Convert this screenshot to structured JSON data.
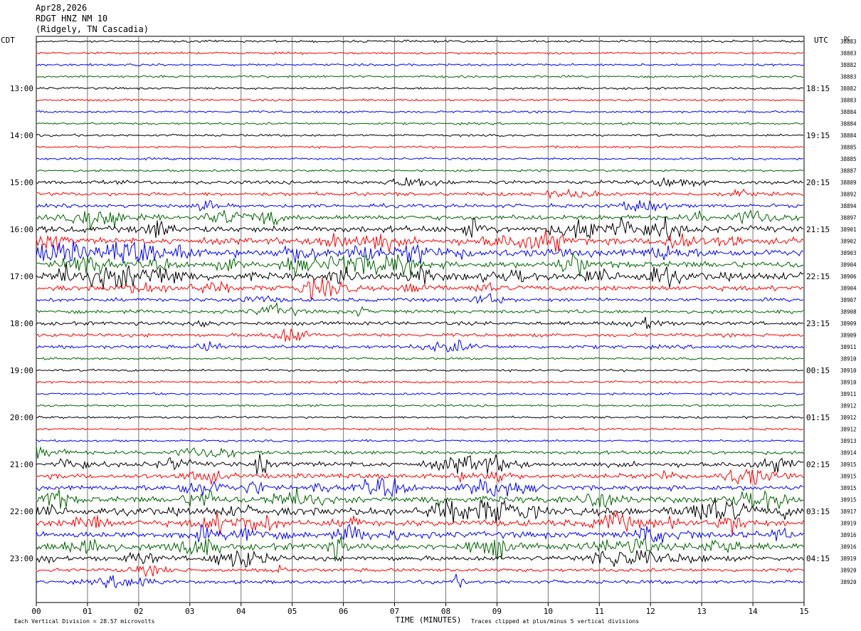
{
  "header": {
    "date": "Apr28,2026",
    "station": "RDGT HNZ NM 10",
    "location": "(Ridgely, TN Cascadia)"
  },
  "chart_data": {
    "type": "line",
    "title": "",
    "xlabel": "TIME (MINUTES)",
    "left_axis_label": "CDT",
    "right_axis_label": "UTC",
    "right_column_label": "DC",
    "xlim": [
      0,
      15
    ],
    "x_ticks": [
      "00",
      "01",
      "02",
      "03",
      "04",
      "05",
      "06",
      "07",
      "08",
      "09",
      "10",
      "11",
      "12",
      "13",
      "14",
      "15"
    ],
    "grid": true,
    "trace_colors": [
      "#000000",
      "#ff0000",
      "#0000ff",
      "#006400"
    ],
    "left_time_labels": [
      "13:00",
      "14:00",
      "15:00",
      "16:00",
      "17:00",
      "18:00",
      "19:00",
      "20:00",
      "21:00",
      "22:00",
      "23:00"
    ],
    "right_time_labels": [
      "18:15",
      "19:15",
      "20:15",
      "21:15",
      "22:15",
      "23:15",
      "00:15",
      "01:15",
      "02:15",
      "03:15",
      "04:15"
    ],
    "label_every_n_traces": 4,
    "first_label_trace": 4,
    "dc_offsets": [
      38883,
      38883,
      38882,
      38883,
      38882,
      38883,
      38884,
      38884,
      38884,
      38885,
      38885,
      38887,
      38889,
      38892,
      38894,
      38897,
      38901,
      38902,
      38903,
      38904,
      38906,
      38904,
      38907,
      38908,
      38909,
      38909,
      38911,
      38910,
      38910,
      38910,
      38911,
      38912,
      38912,
      38912,
      38913,
      38914,
      38915,
      38915,
      38915,
      38915,
      38917,
      38919,
      38916,
      38916,
      38919,
      38920,
      38920
    ],
    "trace_activity": [
      1,
      1,
      1,
      1,
      1,
      1,
      1,
      1,
      1,
      1,
      1,
      1,
      2,
      2,
      2,
      3,
      4,
      4,
      5,
      4,
      5,
      3,
      2,
      2,
      2,
      2,
      2,
      1,
      1,
      1,
      1,
      1,
      1,
      1,
      1,
      2,
      3,
      3,
      3,
      4,
      5,
      4,
      4,
      4,
      3,
      2,
      2
    ],
    "footer_left": "Each Vertical Division =   28.57 microvolts",
    "footer_right": "Traces clipped at plus/minus 5 vertical divisions"
  }
}
